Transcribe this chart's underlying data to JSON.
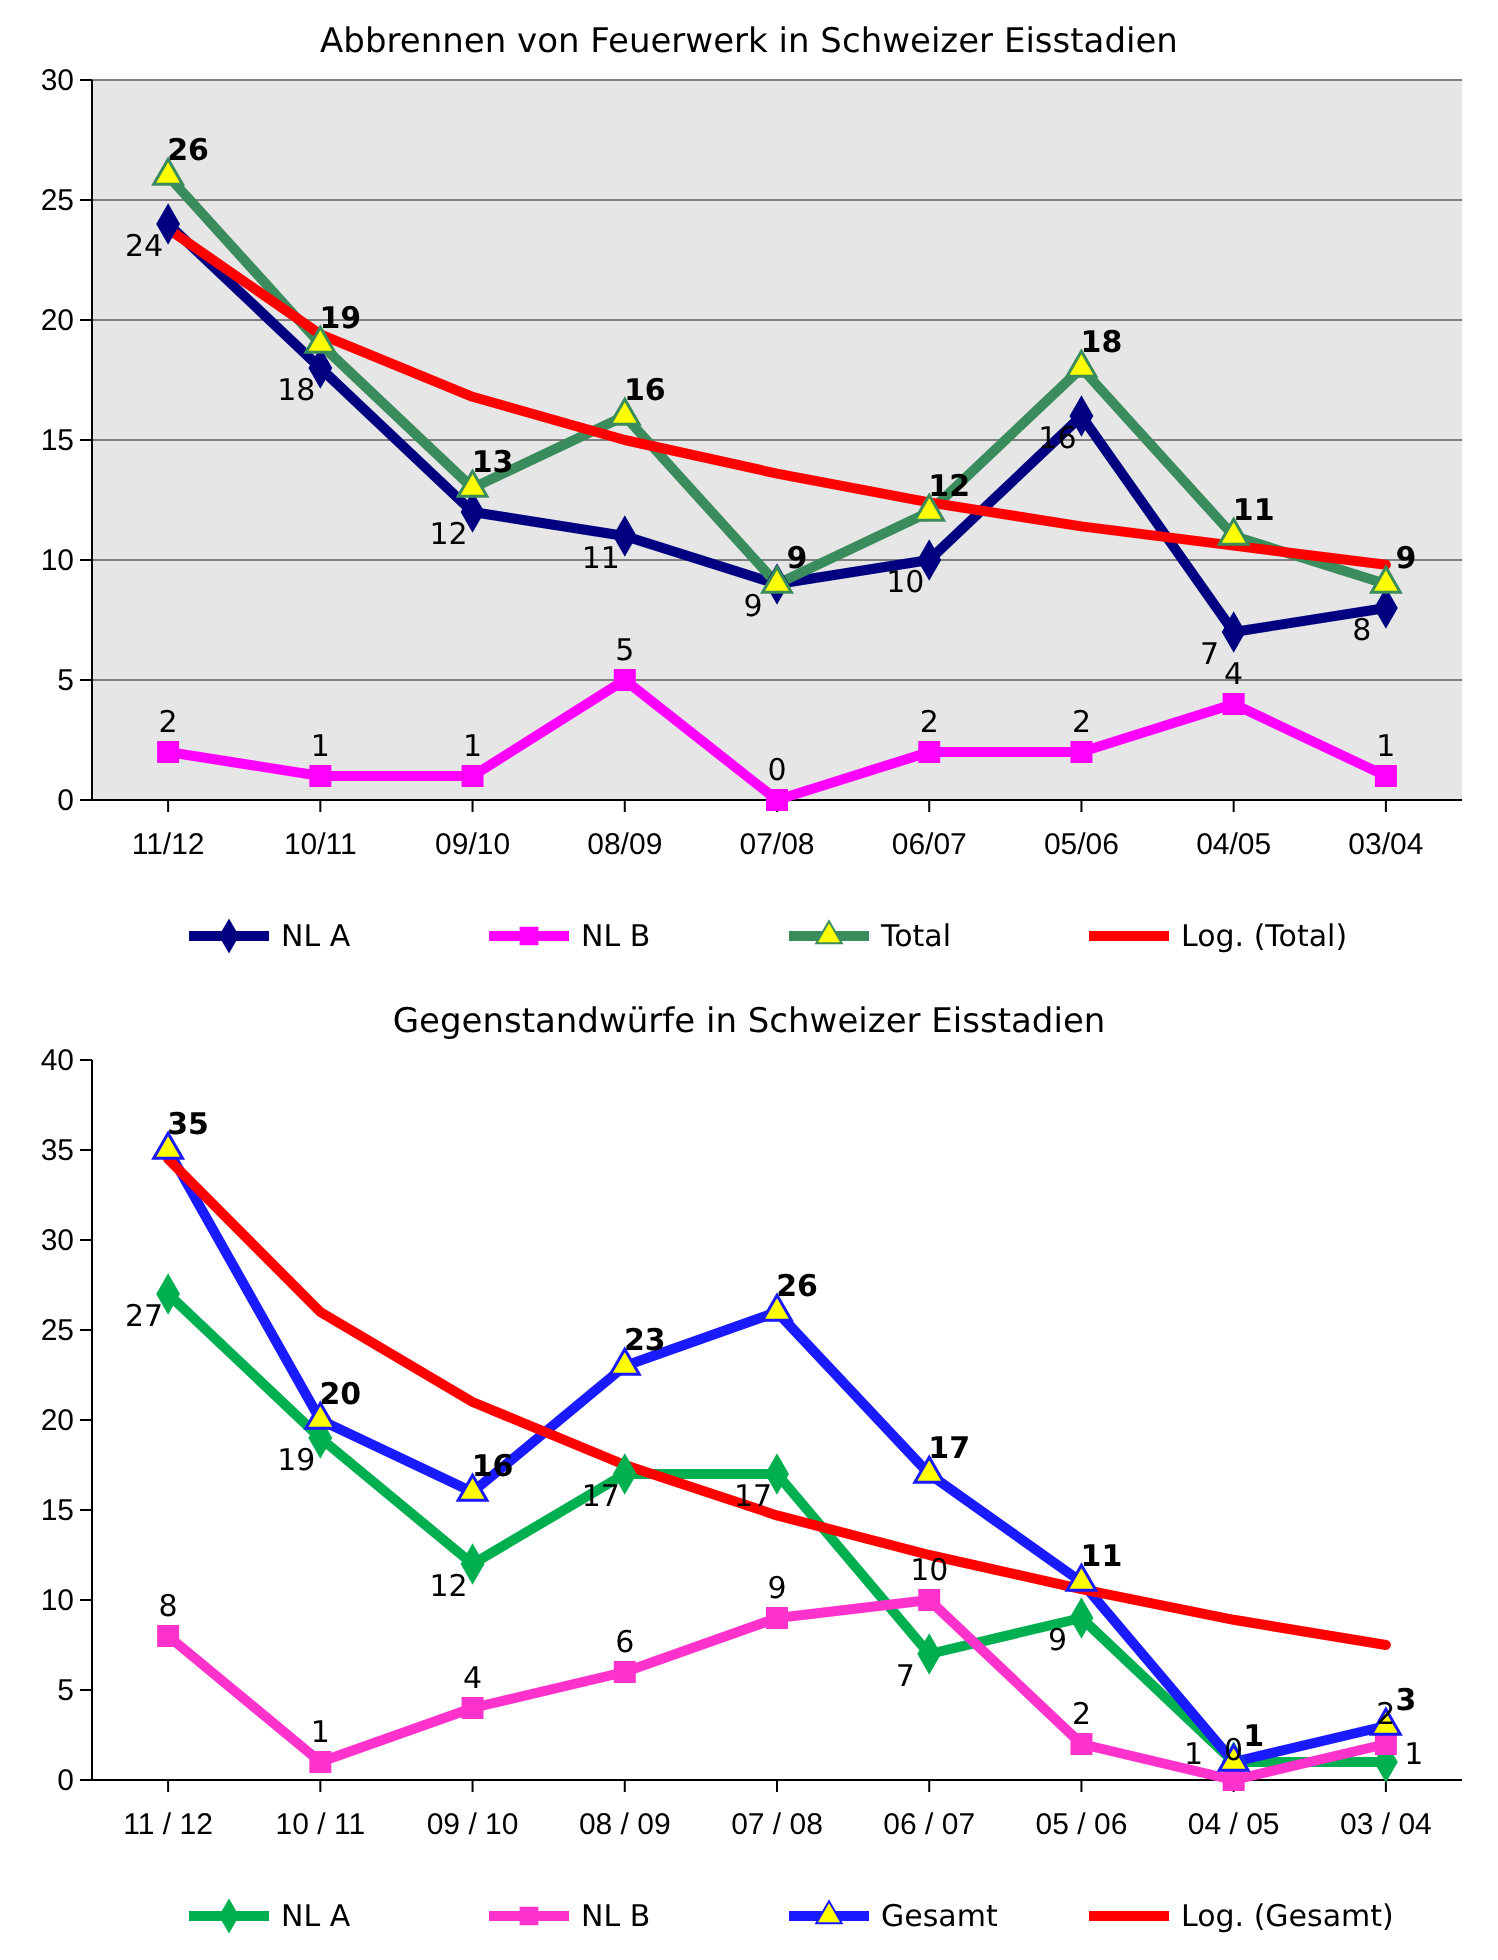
{
  "chart_data": [
    {
      "type": "line",
      "title": "Abbrennen von Feuerwerk in Schweizer Eisstadien",
      "categories": [
        "11/12",
        "10/11",
        "09/10",
        "08/09",
        "07/08",
        "06/07",
        "05/06",
        "04/05",
        "03/04"
      ],
      "ylim": [
        0,
        30
      ],
      "yticks": [
        0,
        5,
        10,
        15,
        20,
        25,
        30
      ],
      "grid": "y",
      "legend": "bottom",
      "series": [
        {
          "name": "NL A",
          "color": "#000080",
          "marker": "diamond",
          "values": [
            24,
            18,
            12,
            11,
            9,
            10,
            16,
            7,
            8
          ],
          "value_labels": [
            "24",
            "18",
            "12",
            "11",
            "9",
            "10",
            "16",
            "7",
            "8"
          ]
        },
        {
          "name": "NL B",
          "color": "#ff00ff",
          "marker": "square",
          "values": [
            2,
            1,
            1,
            5,
            0,
            2,
            2,
            4,
            1
          ],
          "value_labels": [
            "2",
            "1",
            "1",
            "5",
            "0",
            "2",
            "2",
            "4",
            "1"
          ]
        },
        {
          "name": "Total",
          "color": "#3a8c5c",
          "marker": "triangle",
          "values": [
            26,
            19,
            13,
            16,
            9,
            12,
            18,
            11,
            9
          ],
          "value_labels": [
            "26",
            "19",
            "13",
            "16",
            "9",
            "12",
            "18",
            "11",
            "9"
          ]
        },
        {
          "name": "Log. (Total)",
          "color": "#ff0000",
          "marker": "none",
          "values": [
            23.8,
            19.4,
            16.8,
            15.0,
            13.6,
            12.4,
            11.4,
            10.6,
            9.8
          ]
        }
      ]
    },
    {
      "type": "line",
      "title": "Gegenstandwürfe in Schweizer Eisstadien",
      "categories": [
        "11 / 12",
        "10 / 11",
        "09 / 10",
        "08 / 09",
        "07 / 08",
        "06 / 07",
        "05 / 06",
        "04 / 05",
        "03 / 04"
      ],
      "ylim": [
        0,
        40
      ],
      "yticks": [
        0,
        5,
        10,
        15,
        20,
        25,
        30,
        35,
        40
      ],
      "legend": "bottom",
      "series": [
        {
          "name": "NL A",
          "color": "#00b050",
          "marker": "diamond",
          "values": [
            27,
            19,
            12,
            17,
            17,
            7,
            9,
            1,
            1
          ],
          "value_labels": [
            "27",
            "19",
            "12",
            "17",
            "17",
            "7",
            "9",
            "1",
            "1"
          ]
        },
        {
          "name": "NL B",
          "color": "#ff33cc",
          "marker": "square",
          "values": [
            8,
            1,
            4,
            6,
            9,
            10,
            2,
            0,
            2
          ],
          "value_labels": [
            "8",
            "1",
            "4",
            "6",
            "9",
            "10",
            "2",
            "0",
            "2"
          ]
        },
        {
          "name": "Gesamt",
          "color": "#1a1aff",
          "marker": "triangle",
          "values": [
            35,
            20,
            16,
            23,
            26,
            17,
            11,
            1,
            3
          ],
          "value_labels": [
            "35",
            "20",
            "16",
            "23",
            "26",
            "17",
            "11",
            "1",
            "3"
          ]
        },
        {
          "name": "Log. (Gesamt)",
          "color": "#ff0000",
          "marker": "none",
          "values": [
            34.5,
            26.0,
            21.0,
            17.5,
            14.7,
            12.5,
            10.6,
            8.9,
            7.5
          ]
        }
      ]
    }
  ]
}
